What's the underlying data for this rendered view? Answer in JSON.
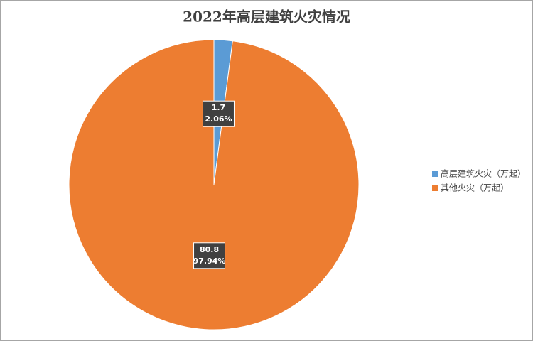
{
  "chart_data": {
    "type": "pie",
    "title": "2022年高层建筑火灾情况",
    "categories": [
      "高层建筑火灾（万起）",
      "其他火灾（万起）"
    ],
    "values": [
      1.7,
      80.8
    ],
    "percent_labels": [
      "2.06%",
      "97.94%"
    ],
    "colors": [
      "#5b9bd5",
      "#ed7d31"
    ],
    "legend": "right"
  }
}
